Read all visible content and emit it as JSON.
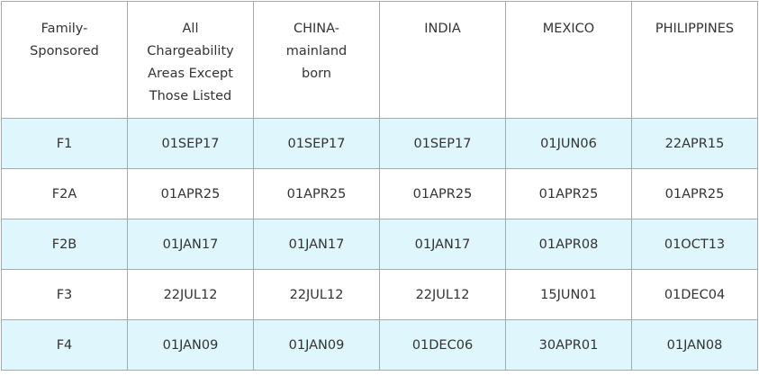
{
  "table": {
    "header": [
      [
        "Family-",
        "Sponsored"
      ],
      [
        "All",
        "Chargeability",
        "Areas Except",
        "Those Listed"
      ],
      [
        "CHINA-",
        "mainland",
        "born"
      ],
      [
        "INDIA"
      ],
      [
        "MEXICO"
      ],
      [
        "PHILIPPINES"
      ]
    ],
    "rows": [
      [
        "F1",
        "01SEP17",
        "01SEP17",
        "01SEP17",
        "01JUN06",
        "22APR15"
      ],
      [
        "F2A",
        "01APR25",
        "01APR25",
        "01APR25",
        "01APR25",
        "01APR25"
      ],
      [
        "F2B",
        "01JAN17",
        "01JAN17",
        "01JAN17",
        "01APR08",
        "01OCT13"
      ],
      [
        "F3",
        "22JUL12",
        "22JUL12",
        "22JUL12",
        "15JUN01",
        "01DEC04"
      ],
      [
        "F4",
        "01JAN09",
        "01JAN09",
        "01DEC06",
        "30APR01",
        "01JAN08"
      ]
    ]
  }
}
